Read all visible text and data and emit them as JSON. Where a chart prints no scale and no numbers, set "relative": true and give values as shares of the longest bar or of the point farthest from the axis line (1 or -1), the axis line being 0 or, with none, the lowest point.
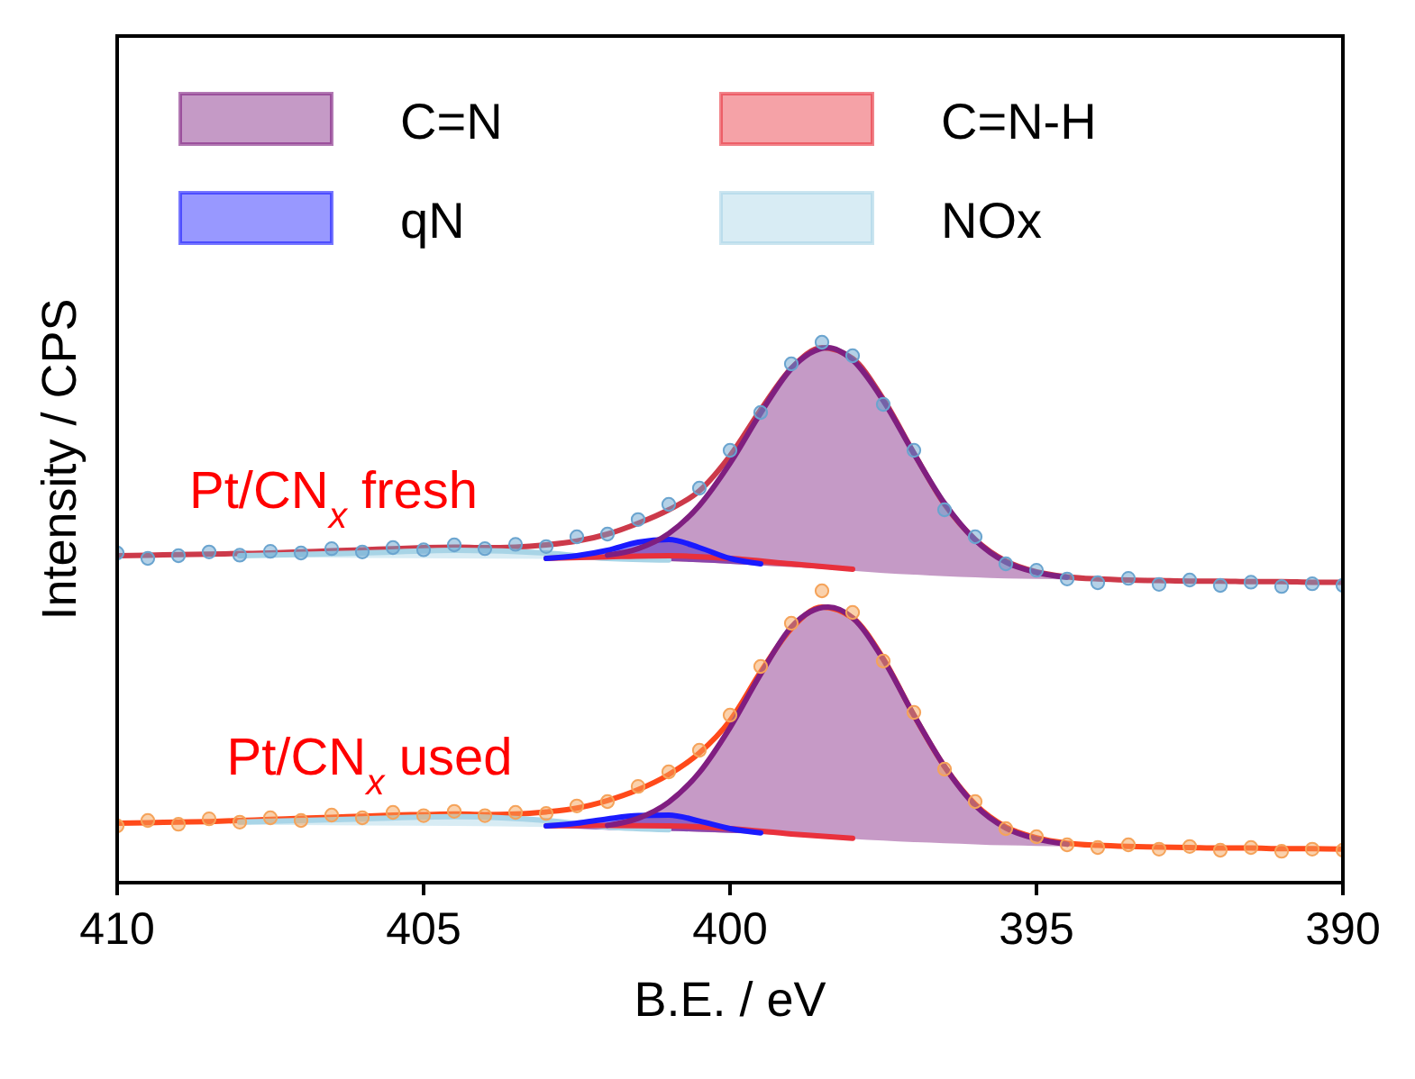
{
  "chart_data": {
    "type": "line",
    "relative": true,
    "xlabel": "B.E. / eV",
    "ylabel": "Intensity / CPS",
    "xlim": [
      410,
      390
    ],
    "xticks": [
      410,
      405,
      400,
      395,
      390
    ],
    "legend": "top",
    "line_style": "solid",
    "annotations": [
      "Pt/CN$_{x}$ fresh",
      "Pt/CN$_{x}$ used"
    ],
    "series": [
      {
        "type": "scatter",
        "marker": "circle",
        "color": "#6aa4cf",
        "x": [
          410,
          409.5,
          409,
          408.5,
          408,
          407.5,
          407,
          406.5,
          406,
          405.5,
          405,
          404.5,
          404,
          403.5,
          403,
          402.5,
          402,
          401.5,
          401,
          400.5,
          400,
          399.5,
          399,
          398.5,
          398,
          397.5,
          397,
          396.5,
          396,
          395.5,
          395,
          394.5,
          394,
          393.5,
          393,
          392.5,
          392,
          391.5,
          391,
          390.5,
          390
        ],
        "values": [
          0.61,
          0.6,
          0.605,
          0.612,
          0.606,
          0.613,
          0.61,
          0.618,
          0.612,
          0.62,
          0.616,
          0.625,
          0.618,
          0.626,
          0.622,
          0.64,
          0.645,
          0.672,
          0.7,
          0.73,
          0.8,
          0.87,
          0.96,
          1.0,
          0.975,
          0.885,
          0.8,
          0.69,
          0.64,
          0.59,
          0.578,
          0.562,
          0.555,
          0.563,
          0.552,
          0.56,
          0.55,
          0.556,
          0.548,
          0.553,
          0.55
        ]
      },
      {
        "color": "#cc3a4a",
        "x": [
          410,
          409.5,
          409,
          408.5,
          408,
          407.5,
          407,
          406.5,
          406,
          405.5,
          405,
          404.5,
          404,
          403.5,
          403,
          402.5,
          402,
          401.5,
          401,
          400.5,
          400,
          399.5,
          399,
          398.5,
          398,
          397.5,
          397,
          396.5,
          396,
          395.5,
          395,
          394.5,
          394,
          393.5,
          393,
          392.5,
          392,
          391.5,
          391,
          390.5,
          390
        ],
        "values": [
          0.605,
          0.606,
          0.607,
          0.608,
          0.609,
          0.61,
          0.612,
          0.614,
          0.616,
          0.618,
          0.62,
          0.621,
          0.62,
          0.621,
          0.625,
          0.632,
          0.645,
          0.665,
          0.69,
          0.725,
          0.79,
          0.875,
          0.952,
          0.99,
          0.97,
          0.895,
          0.795,
          0.7,
          0.635,
          0.595,
          0.575,
          0.566,
          0.562,
          0.56,
          0.559,
          0.558,
          0.558,
          0.557,
          0.557,
          0.556,
          0.556
        ]
      },
      {
        "name": "NOx",
        "color": "#a8d4e6",
        "x": [
          408,
          406,
          404.5,
          403,
          402,
          401
        ],
        "values": [
          0.605,
          0.61,
          0.615,
          0.61,
          0.6,
          0.597
        ],
        "lower": [
          0.602,
          0.601,
          0.6,
          0.599,
          0.598,
          0.595
        ],
        "upper": [
          0.605,
          0.61,
          0.615,
          0.61,
          0.6,
          0.597
        ]
      },
      {
        "name": "C=N-H",
        "color": "#e8303c",
        "x": [
          403,
          402,
          401,
          400,
          399,
          398
        ],
        "values": [
          0.6,
          0.603,
          0.605,
          0.6,
          0.59,
          0.58
        ],
        "lower": [
          0.599,
          0.598,
          0.595,
          0.59,
          0.584,
          0.577
        ],
        "upper": [
          0.6,
          0.603,
          0.605,
          0.6,
          0.59,
          0.58
        ]
      },
      {
        "name": "qN",
        "color": "#1a1aff",
        "x": [
          403,
          402.5,
          402,
          401.5,
          401,
          400.5,
          400,
          399.5
        ],
        "values": [
          0.6,
          0.605,
          0.615,
          0.63,
          0.635,
          0.62,
          0.6,
          0.59
        ],
        "lower": [
          0.599,
          0.598,
          0.598,
          0.597,
          0.595,
          0.593,
          0.59,
          0.587
        ],
        "upper": [
          0.6,
          0.605,
          0.615,
          0.63,
          0.635,
          0.62,
          0.6,
          0.59
        ]
      },
      {
        "name": "C=N",
        "color": "#7f1f80",
        "x": [
          402,
          401.5,
          401,
          400.5,
          400,
          399.5,
          399,
          398.4,
          398,
          397.5,
          397,
          396.5,
          396,
          395.5,
          395,
          394.5
        ],
        "values": [
          0.606,
          0.618,
          0.646,
          0.698,
          0.776,
          0.869,
          0.951,
          0.99,
          0.967,
          0.892,
          0.794,
          0.702,
          0.634,
          0.593,
          0.574,
          0.565
        ],
        "lower": [
          0.598,
          0.597,
          0.595,
          0.593,
          0.59,
          0.587,
          0.584,
          0.58,
          0.577,
          0.573,
          0.57,
          0.567,
          0.565,
          0.563,
          0.562,
          0.561
        ],
        "upper": [
          0.606,
          0.618,
          0.646,
          0.698,
          0.776,
          0.869,
          0.951,
          0.99,
          0.967,
          0.892,
          0.794,
          0.702,
          0.634,
          0.593,
          0.574,
          0.565
        ]
      },
      {
        "type": "scatter",
        "marker": "circle",
        "color": "#f5a35a",
        "x": [
          410,
          409.5,
          409,
          408.5,
          408,
          407.5,
          407,
          406.5,
          406,
          405.5,
          405,
          404.5,
          404,
          403.5,
          403,
          402.5,
          402,
          401.5,
          401,
          400.5,
          400,
          399.5,
          399,
          398.5,
          398,
          397.5,
          397,
          396.5,
          396,
          395.5,
          395,
          394.5,
          394,
          393.5,
          393,
          392.5,
          392,
          391.5,
          391,
          390.5,
          390
        ],
        "values": [
          0.105,
          0.115,
          0.108,
          0.118,
          0.112,
          0.12,
          0.115,
          0.125,
          0.12,
          0.13,
          0.124,
          0.132,
          0.124,
          0.13,
          0.128,
          0.142,
          0.15,
          0.178,
          0.205,
          0.245,
          0.31,
          0.4,
          0.48,
          0.54,
          0.5,
          0.41,
          0.315,
          0.21,
          0.15,
          0.1,
          0.085,
          0.07,
          0.065,
          0.07,
          0.062,
          0.067,
          0.06,
          0.065,
          0.058,
          0.062,
          0.06
        ]
      },
      {
        "color": "#ff4a1a",
        "x": [
          410,
          409.5,
          409,
          408.5,
          408,
          407.5,
          407,
          406.5,
          406,
          405.5,
          405,
          404.5,
          404,
          403.5,
          403,
          402.5,
          402,
          401.5,
          401,
          400.5,
          400,
          399.5,
          399,
          398.5,
          398,
          397.5,
          397,
          396.5,
          396,
          395.5,
          395,
          394.5,
          394,
          393.5,
          393,
          392.5,
          392,
          391.5,
          391,
          390.5,
          390
        ],
        "values": [
          0.11,
          0.111,
          0.112,
          0.113,
          0.115,
          0.117,
          0.119,
          0.121,
          0.123,
          0.125,
          0.126,
          0.127,
          0.126,
          0.127,
          0.131,
          0.138,
          0.152,
          0.172,
          0.2,
          0.24,
          0.3,
          0.39,
          0.47,
          0.51,
          0.49,
          0.415,
          0.31,
          0.215,
          0.145,
          0.103,
          0.083,
          0.073,
          0.069,
          0.067,
          0.066,
          0.065,
          0.064,
          0.064,
          0.063,
          0.063,
          0.062
        ]
      },
      {
        "color": "#a9d5e7",
        "x": [
          408,
          406,
          404.5,
          403,
          402,
          401
        ],
        "values": [
          0.112,
          0.118,
          0.122,
          0.115,
          0.103,
          0.098
        ],
        "lower": [
          0.107,
          0.106,
          0.105,
          0.103,
          0.098,
          0.096
        ],
        "upper": [
          0.112,
          0.118,
          0.122,
          0.115,
          0.103,
          0.098
        ]
      },
      {
        "color": "#e9313d",
        "x": [
          403,
          402,
          401,
          400,
          399,
          398
        ],
        "values": [
          0.105,
          0.106,
          0.105,
          0.1,
          0.09,
          0.082
        ],
        "lower": [
          0.103,
          0.098,
          0.096,
          0.092,
          0.088,
          0.081
        ],
        "upper": [
          0.105,
          0.106,
          0.105,
          0.1,
          0.09,
          0.082
        ]
      },
      {
        "color": "#1b1bfe",
        "x": [
          403,
          402.5,
          402,
          401.5,
          401,
          400.5,
          400,
          399.5
        ],
        "values": [
          0.105,
          0.11,
          0.118,
          0.124,
          0.125,
          0.114,
          0.1,
          0.092
        ],
        "lower": [
          0.103,
          0.1,
          0.098,
          0.097,
          0.096,
          0.094,
          0.092,
          0.09
        ],
        "upper": [
          0.105,
          0.11,
          0.118,
          0.124,
          0.125,
          0.114,
          0.1,
          0.092
        ]
      },
      {
        "color": "#801e81",
        "x": [
          402,
          401.5,
          401,
          400.5,
          400,
          399.5,
          399,
          398.4,
          398,
          397.5,
          397,
          396.5,
          396,
          395.5,
          395,
          394.5
        ],
        "values": [
          0.106,
          0.119,
          0.149,
          0.204,
          0.287,
          0.386,
          0.473,
          0.51,
          0.49,
          0.413,
          0.31,
          0.215,
          0.143,
          0.101,
          0.081,
          0.071
        ],
        "lower": [
          0.098,
          0.097,
          0.096,
          0.094,
          0.092,
          0.09,
          0.088,
          0.083,
          0.081,
          0.078,
          0.075,
          0.073,
          0.071,
          0.069,
          0.068,
          0.067
        ],
        "upper": [
          0.106,
          0.119,
          0.149,
          0.204,
          0.287,
          0.386,
          0.473,
          0.51,
          0.49,
          0.413,
          0.31,
          0.215,
          0.143,
          0.101,
          0.081,
          0.071
        ]
      }
    ]
  }
}
